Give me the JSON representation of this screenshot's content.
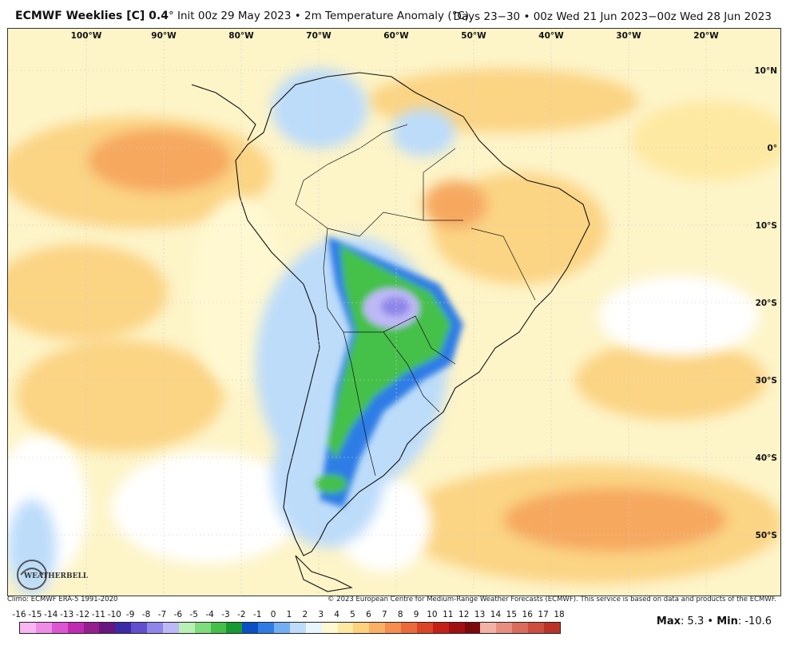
{
  "header": {
    "title": "ECMWF Weeklies [C] 0.4",
    "subtitle": "° Init 00z 29 May 2023 • 2m Temperature Anomaly (°C)",
    "days": "Days 23−30 • 00z Wed 21 Jun 2023−00z Wed 28 Jun 2023"
  },
  "map": {
    "lon_labels": [
      "100°W",
      "90°W",
      "80°W",
      "70°W",
      "60°W",
      "50°W",
      "40°W",
      "30°W",
      "20°W"
    ],
    "lat_labels": [
      "10°N",
      "0°",
      "10°S",
      "20°S",
      "30°S",
      "40°S",
      "50°S"
    ],
    "logo_text": "WEATHERBELL",
    "colors": {
      "ocean_neutral": "#ffffff",
      "warm_light": "#fdeea6",
      "warm_mid": "#fbd484",
      "warm_strong": "#f6a85f",
      "cool_light": "#cfe6fb",
      "cool_mid": "#7fb6ee",
      "cool_blue": "#2f6fd6",
      "cool_green": "#3cb85a",
      "cool_purple": "#b9a6f0"
    }
  },
  "footer": {
    "climo": "Climo: ECMWF ERA-5 1991-2020",
    "copyright": "© 2023 European Centre for Medium-Range Weather Forecasts (ECMWF). This service is based on data and products of the ECMWF."
  },
  "colorbar": {
    "labels": [
      "-16",
      "-15",
      "-14",
      "-13",
      "-12",
      "-11",
      "-10",
      "-9",
      "-8",
      "-7",
      "-6",
      "-5",
      "-4",
      "-3",
      "-2",
      "-1",
      "0",
      "1",
      "2",
      "3",
      "4",
      "5",
      "6",
      "7",
      "8",
      "9",
      "10",
      "11",
      "12",
      "13",
      "14",
      "15",
      "16",
      "17",
      "18"
    ],
    "colors": [
      "#f9b6f2",
      "#ef8ce6",
      "#dc55d2",
      "#c02bb4",
      "#951f8d",
      "#6a1680",
      "#3c2aa6",
      "#6050d0",
      "#8f86ea",
      "#bdb8f6",
      "#b8f0b5",
      "#7fdc7c",
      "#44c04a",
      "#169a31",
      "#0b4fc4",
      "#2f7ce6",
      "#74aef2",
      "#bcdcfa",
      "#e8f6ff",
      "#fff8d0",
      "#fee9a2",
      "#fdd17e",
      "#fbb066",
      "#f68e4f",
      "#ec6a3a",
      "#dc4428",
      "#c52015",
      "#a11010",
      "#7d0a0a",
      "#f3b2a6",
      "#e88e80",
      "#da6b5d",
      "#cd4d40",
      "#bb3328"
    ]
  },
  "stats": {
    "max_label": "Max",
    "max": "5.3",
    "sep": "•",
    "min_label": "Min",
    "min": "-10.6"
  }
}
